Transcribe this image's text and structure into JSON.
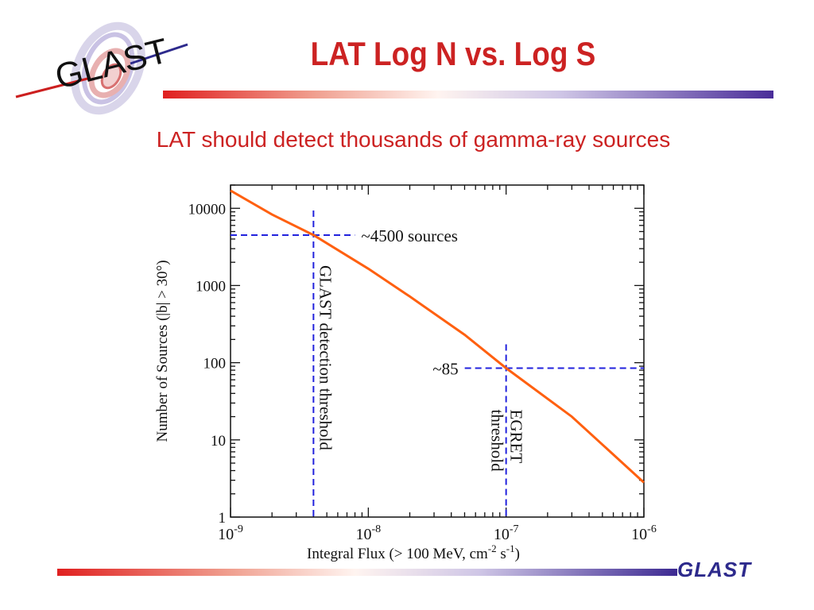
{
  "slide": {
    "title": "LAT Log N vs. Log S",
    "subtitle": "LAT should detect thousands of gamma-ray sources",
    "logo_text": "GLAST",
    "footer_logo": "GLAST"
  },
  "colors": {
    "title": "#cc2222",
    "curve": "#ff6010",
    "guide": "#2222dd",
    "logo_blue": "#2d2a8c"
  },
  "chart_data": {
    "type": "line",
    "x_scale": "log",
    "y_scale": "log",
    "xlim": [
      1e-09,
      1e-06
    ],
    "ylim": [
      1,
      20000
    ],
    "xlabel_main": "Integral Flux (> 100 MeV, cm",
    "xlabel_exp1": "-2",
    "xlabel_mid": " s",
    "xlabel_exp2": "-1",
    "xlabel_end": ")",
    "ylabel": "Number of Sources (|b| > 30°)",
    "x_ticks": [
      {
        "value": 1e-09,
        "base": "10",
        "exp": "-9"
      },
      {
        "value": 1e-08,
        "base": "10",
        "exp": "-8"
      },
      {
        "value": 1e-07,
        "base": "10",
        "exp": "-7"
      },
      {
        "value": 1e-06,
        "base": "10",
        "exp": "-6"
      }
    ],
    "y_ticks": [
      {
        "value": 1,
        "label": "1"
      },
      {
        "value": 10,
        "label": "10"
      },
      {
        "value": 100,
        "label": "100"
      },
      {
        "value": 1000,
        "label": "1000"
      },
      {
        "value": 10000,
        "label": "10000"
      }
    ],
    "series": [
      {
        "x": [
          1e-09,
          2e-09,
          4e-09,
          1e-08,
          2e-08,
          5e-08,
          1e-07,
          3e-07,
          1e-06
        ],
        "y": [
          17000,
          8300,
          4500,
          1650,
          720,
          230,
          85,
          20,
          2.8
        ]
      }
    ],
    "annotations": {
      "glast_threshold": {
        "x": 4e-09,
        "y": 4500,
        "label": "~4500 sources",
        "vertical_label": "GLAST detection threshold"
      },
      "egret_threshold": {
        "x": 1e-07,
        "y": 85,
        "label": "~85",
        "vertical_label_1": "EGRET",
        "vertical_label_2": "threshold"
      }
    }
  }
}
